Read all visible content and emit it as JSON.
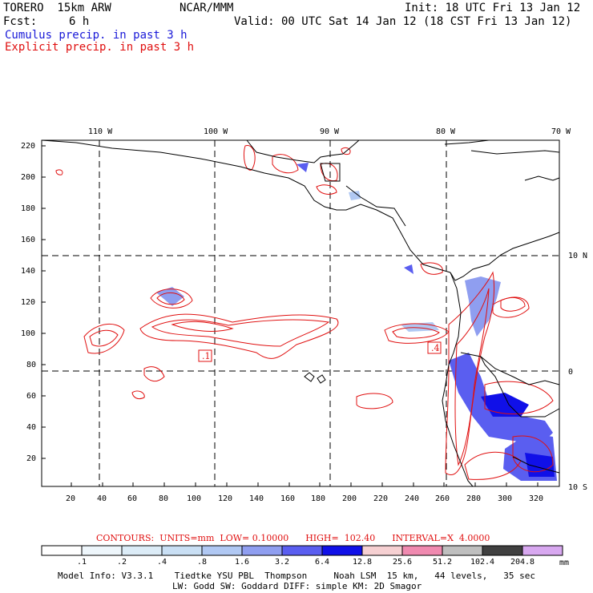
{
  "header": {
    "model": "TORERO  15km ARW",
    "org": "NCAR/MMM",
    "init": "Init: 18 UTC Fri 13 Jan 12",
    "fcst_label": "Fcst:",
    "fcst_value": "6 h",
    "valid": "Valid: 00 UTC Sat 14 Jan 12 (18 CST Fri 13 Jan 12)",
    "cumulus": "Cumulus precip. in past 3 h",
    "explicit": "Explicit precip. in past 3 h"
  },
  "colors": {
    "cumulus": "#1a1ad8",
    "explicit": "#e01010",
    "coast": "#000000"
  },
  "axes": {
    "top_lon": [
      "110 W",
      "100 W",
      "90 W",
      "80 W",
      "70 W"
    ],
    "right_lat": [
      "10 N",
      "0",
      "10 S"
    ],
    "left_grid": [
      "220",
      "200",
      "180",
      "160",
      "140",
      "120",
      "100",
      "80",
      "60",
      "40",
      "20"
    ],
    "bottom_grid": [
      "20",
      "40",
      "60",
      "80",
      "100",
      "120",
      "140",
      "160",
      "180",
      "200",
      "220",
      "240",
      "260",
      "280",
      "300",
      "320"
    ]
  },
  "low_high_markers": [
    {
      "label": ".1"
    },
    {
      "label": ".4"
    }
  ],
  "contours": {
    "text": "CONTOURS:  UNITS=mm  LOW= 0.10000      HIGH=  102.40      INTERVAL=X  4.0000"
  },
  "colorbar": {
    "unit": "mm",
    "labels": [
      ".1",
      ".2",
      ".4",
      ".8",
      "1.6",
      "3.2",
      "6.4",
      "12.8",
      "25.6",
      "51.2",
      "102.4",
      "204.8"
    ],
    "colors": [
      "#ffffff",
      "#eef6fb",
      "#dcecf7",
      "#c9dff4",
      "#b0c8f3",
      "#8f9ef0",
      "#5a5ef0",
      "#1010e8",
      "#f6d0d2",
      "#f08ab0",
      "#bfbfbf",
      "#404040",
      "#d8a8f0"
    ]
  },
  "footer": {
    "line1": "Model Info: V3.3.1    Tiedtke YSU PBL  Thompson     Noah LSM  15 km,   44 levels,   35 sec",
    "line2": "LW: Godd SW: Goddard DIFF: simple KM: 2D Smagor"
  }
}
